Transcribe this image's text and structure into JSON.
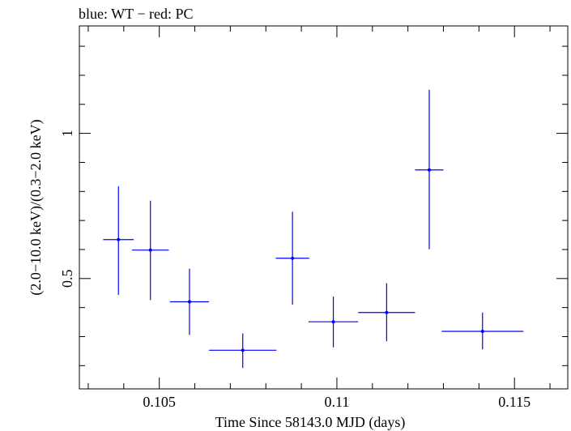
{
  "chart_data": {
    "type": "scatter",
    "title": "blue: WT − red: PC",
    "xlabel": "Time Since 58143.0 MJD (days)",
    "ylabel": "(2.0−10.0 keV)/(0.3−2.0 keV)",
    "xlim": [
      0.10275,
      0.1165
    ],
    "ylim": [
      0.12,
      1.37
    ],
    "x_ticks": [
      {
        "value": 0.105,
        "label": "0.105"
      },
      {
        "value": 0.11,
        "label": "0.11"
      },
      {
        "value": 0.115,
        "label": "0.115"
      }
    ],
    "y_ticks": [
      {
        "value": 0.5,
        "label": "0.5"
      },
      {
        "value": 1.0,
        "label": "1"
      }
    ],
    "series": [
      {
        "color": "#0000ff",
        "points": [
          {
            "x": 0.10385,
            "y": 0.634,
            "xerr": 0.00043,
            "y_low": 0.444,
            "y_high": 0.818
          },
          {
            "x": 0.10475,
            "y": 0.598,
            "xerr": 0.00052,
            "y_low": 0.426,
            "y_high": 0.768
          },
          {
            "x": 0.10585,
            "y": 0.42,
            "xerr": 0.00055,
            "y_low": 0.306,
            "y_high": 0.534
          },
          {
            "x": 0.10735,
            "y": 0.253,
            "xerr": 0.00095,
            "y_low": 0.192,
            "y_high": 0.311
          },
          {
            "x": 0.10875,
            "y": 0.57,
            "xerr": 0.00047,
            "y_low": 0.41,
            "y_high": 0.73
          },
          {
            "x": 0.1099,
            "y": 0.351,
            "xerr": 0.0007,
            "y_low": 0.263,
            "y_high": 0.438
          },
          {
            "x": 0.1114,
            "y": 0.383,
            "xerr": 0.0008,
            "y_low": 0.284,
            "y_high": 0.484
          },
          {
            "x": 0.1126,
            "y": 0.874,
            "xerr": 0.0004,
            "y_low": 0.601,
            "y_high": 1.15
          },
          {
            "x": 0.1141,
            "y": 0.318,
            "xerr": 0.00115,
            "y_low": 0.256,
            "y_high": 0.383
          }
        ]
      }
    ],
    "grid": false
  }
}
